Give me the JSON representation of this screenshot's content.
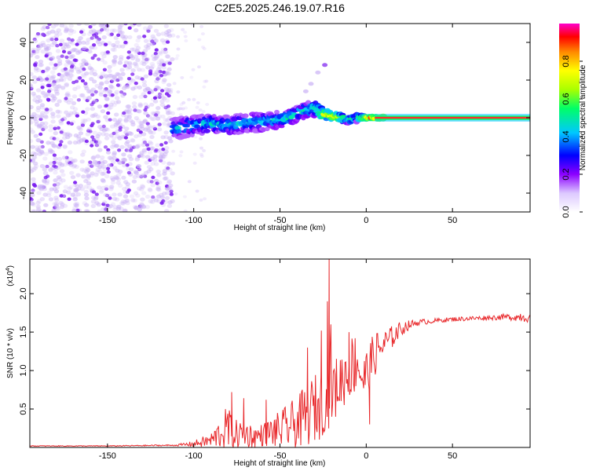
{
  "title": "C2E5.2025.246.19.07.R16",
  "colors": {
    "snr_line": "#e8272a",
    "scatter_sparse": "#7a1cf0",
    "signal_core": "#ff2a2a",
    "colorbar_stops": [
      "#ffffff",
      "#dcc8ff",
      "#8c00ff",
      "#0000ff",
      "#00c8ff",
      "#00ff66",
      "#aaff00",
      "#ffff00",
      "#ff8800",
      "#ff0000",
      "#ff00cc"
    ]
  },
  "chart_data": [
    {
      "type": "heatmap",
      "name": "spectrogram",
      "xlabel": "Height of straight line (km)",
      "ylabel": "Frequency (Hz)",
      "xlim": [
        -195,
        95
      ],
      "ylim": [
        -50,
        50
      ],
      "xticks": [
        {
          "value": -150,
          "label": "-150"
        },
        {
          "value": -100,
          "label": "-100"
        },
        {
          "value": -50,
          "label": "-50"
        },
        {
          "value": 0,
          "label": "0"
        },
        {
          "value": 50,
          "label": "50"
        }
      ],
      "yticks": [
        {
          "value": -40,
          "label": "-40"
        },
        {
          "value": -20,
          "label": "-20"
        },
        {
          "value": 0,
          "label": "0"
        },
        {
          "value": 20,
          "label": "20"
        },
        {
          "value": 40,
          "label": "40"
        }
      ],
      "noise_region_x": [
        -195,
        -112
      ],
      "signal_track": {
        "x": [
          -112,
          -100,
          -90,
          -80,
          -70,
          -60,
          -50,
          -45,
          -40,
          -35,
          -30,
          -25,
          -20,
          -15,
          -10,
          -5,
          0,
          5,
          10,
          30,
          60,
          95
        ],
        "y": [
          -6,
          -4,
          -3,
          -4,
          -3,
          -2,
          -1,
          0,
          2,
          4,
          5,
          2,
          1,
          0,
          -1,
          0,
          0,
          0,
          0,
          0,
          0,
          0
        ],
        "spread_hz": [
          6,
          5,
          5,
          5,
          5,
          5,
          4,
          4,
          4,
          4,
          4,
          3,
          2,
          2,
          2,
          2,
          1,
          1,
          1,
          1,
          1,
          1
        ],
        "amplitude": [
          0.4,
          0.45,
          0.45,
          0.45,
          0.45,
          0.45,
          0.5,
          0.5,
          0.5,
          0.5,
          0.5,
          0.7,
          0.75,
          0.7,
          0.5,
          0.55,
          0.8,
          0.85,
          0.9,
          0.9,
          0.9,
          0.9
        ]
      },
      "side_trail": {
        "x": [
          -35,
          -32,
          -28,
          -24
        ],
        "y": [
          14,
          18,
          24,
          28
        ]
      },
      "colorbar": {
        "label": "Normalized spectral amplitude",
        "range": [
          0,
          1
        ],
        "ticks": [
          {
            "value": 0.0,
            "label": "0.0"
          },
          {
            "value": 0.2,
            "label": "0.2"
          },
          {
            "value": 0.4,
            "label": "0.4"
          },
          {
            "value": 0.6,
            "label": "0.6"
          },
          {
            "value": 0.8,
            "label": "0.8"
          }
        ]
      }
    },
    {
      "type": "line",
      "name": "snr",
      "xlabel": "Height of straight line (km)",
      "ylabel": "SNR (10 * v/v)",
      "y_multiplier_label": "(x10",
      "y_multiplier_exponent": "4",
      "y_multiplier_close": ")",
      "xlim": [
        -195,
        95
      ],
      "ylim": [
        0,
        2.45
      ],
      "xticks": [
        {
          "value": -150,
          "label": "-150"
        },
        {
          "value": -100,
          "label": "-100"
        },
        {
          "value": -50,
          "label": "-50"
        },
        {
          "value": 0,
          "label": "0"
        },
        {
          "value": 50,
          "label": "50"
        }
      ],
      "yticks": [
        {
          "value": 0.5,
          "label": "0.5"
        },
        {
          "value": 1.0,
          "label": "1.0"
        },
        {
          "value": 1.5,
          "label": "1.5"
        },
        {
          "value": 2.0,
          "label": "2.0"
        }
      ],
      "x": [
        -195,
        -150,
        -110,
        -100,
        -90,
        -82,
        -80,
        -78,
        -75,
        -70,
        -65,
        -60,
        -55,
        -50,
        -45,
        -40,
        -35,
        -30,
        -26,
        -24,
        -22,
        -21,
        -20,
        -18,
        -15,
        -10,
        -5,
        -2,
        0,
        2,
        5,
        10,
        15,
        20,
        25,
        30,
        40,
        50,
        60,
        70,
        80,
        88,
        90,
        95
      ],
      "y": [
        0.02,
        0.02,
        0.03,
        0.05,
        0.1,
        0.25,
        0.3,
        0.2,
        0.18,
        0.2,
        0.15,
        0.18,
        0.22,
        0.25,
        0.3,
        0.35,
        0.45,
        0.55,
        0.6,
        0.55,
        0.7,
        1.2,
        0.8,
        0.8,
        0.9,
        1.05,
        1.2,
        0.9,
        1.0,
        1.1,
        1.25,
        1.35,
        1.45,
        1.55,
        1.6,
        1.63,
        1.65,
        1.67,
        1.68,
        1.69,
        1.7,
        1.7,
        1.72,
        1.68
      ],
      "noise": [
        0.005,
        0.005,
        0.01,
        0.04,
        0.1,
        0.25,
        0.35,
        0.2,
        0.2,
        0.18,
        0.15,
        0.15,
        0.2,
        0.25,
        0.3,
        0.35,
        0.4,
        0.45,
        0.45,
        0.3,
        0.5,
        0.6,
        0.5,
        0.4,
        0.4,
        0.4,
        0.45,
        0.35,
        0.3,
        0.3,
        0.3,
        0.2,
        0.15,
        0.1,
        0.06,
        0.04,
        0.03,
        0.03,
        0.03,
        0.03,
        0.04,
        0.05,
        0.08,
        0.05
      ],
      "peaks": [
        {
          "x": -78,
          "y": 0.72
        },
        {
          "x": -71,
          "y": 0.64
        },
        {
          "x": -58,
          "y": 0.62
        },
        {
          "x": -34,
          "y": 1.3
        },
        {
          "x": -26,
          "y": 1.52
        },
        {
          "x": -22.5,
          "y": 1.9
        },
        {
          "x": -21.5,
          "y": 2.45
        },
        {
          "x": -20.5,
          "y": 1.6
        },
        {
          "x": -10,
          "y": 1.5
        },
        {
          "x": 2,
          "y": 0.3
        }
      ]
    }
  ]
}
